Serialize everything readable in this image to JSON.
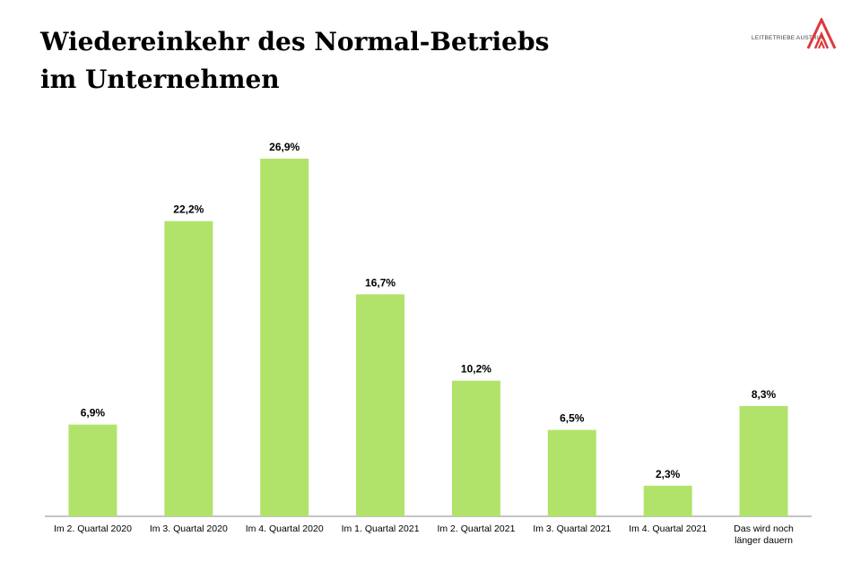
{
  "title_line1": "Wiedereinkehr des Normal-Betriebs",
  "title_line2": "im Unternehmen",
  "logo_text": "LEITBETRIEBE AUSTRIA",
  "colors": {
    "bar": "#b1e36a",
    "logo": "#e0383a"
  },
  "chart_data": {
    "type": "bar",
    "categories": [
      "Im 2. Quartal 2020",
      "Im 3. Quartal 2020",
      "Im 4. Quartal 2020",
      "Im 1. Quartal 2021",
      "Im 2. Quartal 2021",
      "Im 3. Quartal 2021",
      "Im 4. Quartal 2021",
      "Das wird noch länger dauern"
    ],
    "values": [
      6.9,
      22.2,
      26.9,
      16.7,
      10.2,
      6.5,
      2.3,
      8.3
    ],
    "value_labels": [
      "6,9%",
      "22,2%",
      "26,9%",
      "16,7%",
      "10,2%",
      "6,5%",
      "2,3%",
      "8,3%"
    ],
    "ylim": [
      0,
      30
    ],
    "grid": false
  }
}
